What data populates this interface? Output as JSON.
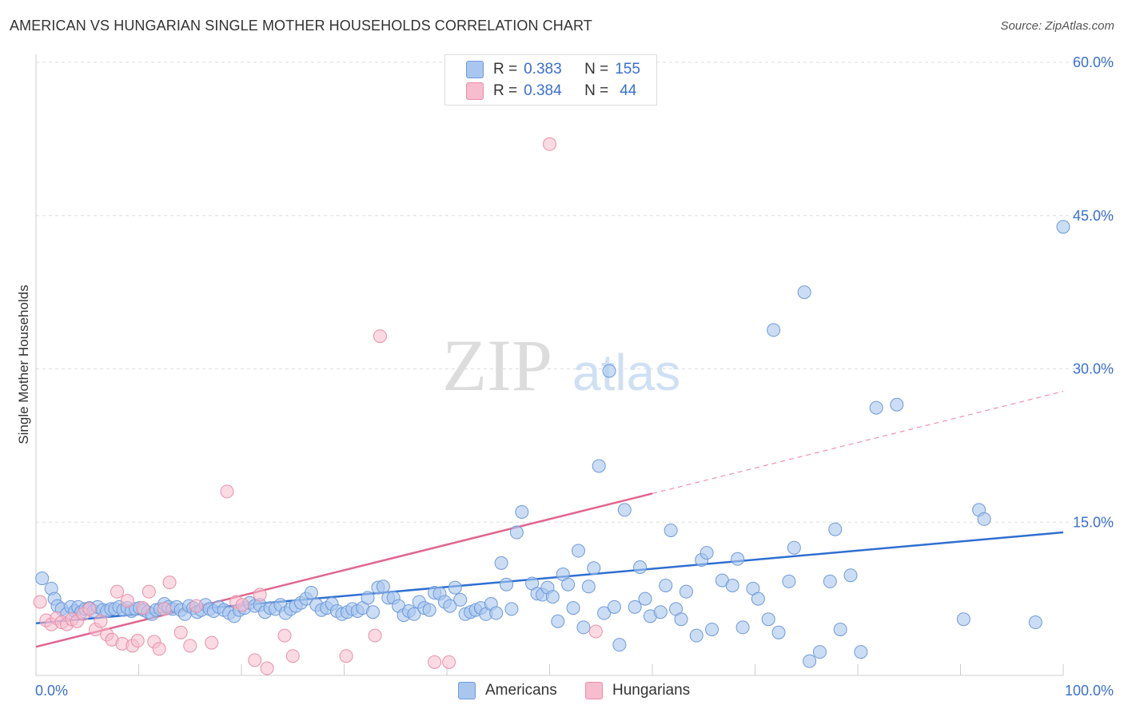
{
  "title": "AMERICAN VS HUNGARIAN SINGLE MOTHER HOUSEHOLDS CORRELATION CHART",
  "source": "Source: ZipAtlas.com",
  "watermark": {
    "zip": "ZIP",
    "atlas": "atlas"
  },
  "colors": {
    "americans_fill": "#a9c6ee",
    "americans_stroke": "#6f9ad8",
    "americans_line": "#2f6fd0",
    "hungarians_fill": "#f7bccd",
    "hungarians_stroke": "#e890aa",
    "hungarians_line": "#e0658d",
    "tick_label": "#3a6fd0",
    "grid": "#dddddd"
  },
  "legend": {
    "rows": [
      {
        "r_label": "R =",
        "r_value": "0.383",
        "n_label": "N =",
        "n_value": "155"
      },
      {
        "r_label": "R =",
        "r_value": "0.384",
        "n_label": "N =",
        "n_value": "44"
      }
    ]
  },
  "bottom_legend": {
    "americans": "Americans",
    "hungarians": "Hungarians"
  },
  "chart_data": {
    "type": "scatter",
    "title": "AMERICAN VS HUNGARIAN SINGLE MOTHER HOUSEHOLDS CORRELATION CHART",
    "xlabel": "",
    "ylabel": "Single Mother Households",
    "xlim": [
      0,
      100
    ],
    "ylim": [
      0,
      60
    ],
    "x_tick_labels": [
      "0.0%",
      "100.0%"
    ],
    "y_ticks": [
      15,
      30,
      45,
      60
    ],
    "y_tick_labels": [
      "15.0%",
      "30.0%",
      "45.0%",
      "60.0%"
    ],
    "grid": true,
    "legend_position": "top-center",
    "series": [
      {
        "name": "Americans",
        "r": 0.383,
        "n": 155,
        "trend": {
          "x0": 0,
          "y0": 5.1,
          "x1": 100,
          "y1": 14.0
        },
        "points": [
          [
            0.6,
            9.5
          ],
          [
            1.5,
            8.5
          ],
          [
            1.8,
            7.5
          ],
          [
            2.1,
            6.8
          ],
          [
            2.5,
            6.5
          ],
          [
            3.0,
            6.0
          ],
          [
            3.4,
            6.7
          ],
          [
            3.8,
            6.3
          ],
          [
            4.1,
            6.7
          ],
          [
            4.4,
            6.2
          ],
          [
            4.8,
            6.5
          ],
          [
            5.2,
            6.6
          ],
          [
            5.6,
            6.3
          ],
          [
            6.0,
            6.7
          ],
          [
            6.5,
            6.4
          ],
          [
            6.9,
            6.3
          ],
          [
            7.3,
            6.5
          ],
          [
            7.7,
            6.5
          ],
          [
            8.1,
            6.7
          ],
          [
            8.5,
            6.4
          ],
          [
            8.9,
            6.6
          ],
          [
            9.3,
            6.3
          ],
          [
            9.7,
            6.5
          ],
          [
            10.1,
            6.6
          ],
          [
            10.5,
            6.4
          ],
          [
            10.9,
            6.2
          ],
          [
            11.3,
            6.0
          ],
          [
            11.7,
            6.4
          ],
          [
            12.1,
            6.5
          ],
          [
            12.5,
            7.0
          ],
          [
            12.9,
            6.7
          ],
          [
            13.3,
            6.5
          ],
          [
            13.7,
            6.7
          ],
          [
            14.1,
            6.4
          ],
          [
            14.5,
            6.0
          ],
          [
            14.9,
            6.8
          ],
          [
            15.3,
            6.6
          ],
          [
            15.7,
            6.2
          ],
          [
            16.1,
            6.4
          ],
          [
            16.5,
            6.9
          ],
          [
            16.9,
            6.5
          ],
          [
            17.3,
            6.3
          ],
          [
            17.8,
            6.7
          ],
          [
            18.3,
            6.4
          ],
          [
            18.8,
            6.1
          ],
          [
            19.3,
            5.8
          ],
          [
            19.8,
            6.4
          ],
          [
            20.3,
            6.6
          ],
          [
            20.8,
            7.1
          ],
          [
            21.3,
            6.8
          ],
          [
            21.8,
            6.9
          ],
          [
            22.3,
            6.2
          ],
          [
            22.8,
            6.6
          ],
          [
            23.3,
            6.5
          ],
          [
            23.8,
            6.9
          ],
          [
            24.3,
            6.1
          ],
          [
            24.8,
            6.5
          ],
          [
            25.3,
            6.8
          ],
          [
            25.8,
            7.1
          ],
          [
            26.3,
            7.5
          ],
          [
            26.8,
            8.1
          ],
          [
            27.3,
            6.9
          ],
          [
            27.8,
            6.4
          ],
          [
            28.3,
            6.6
          ],
          [
            28.8,
            7.0
          ],
          [
            29.3,
            6.3
          ],
          [
            29.8,
            6.0
          ],
          [
            30.3,
            6.2
          ],
          [
            30.8,
            6.5
          ],
          [
            31.3,
            6.3
          ],
          [
            31.8,
            6.6
          ],
          [
            32.3,
            7.6
          ],
          [
            32.8,
            6.2
          ],
          [
            33.3,
            8.6
          ],
          [
            33.8,
            8.7
          ],
          [
            34.3,
            7.6
          ],
          [
            34.8,
            7.6
          ],
          [
            35.3,
            6.8
          ],
          [
            35.8,
            5.9
          ],
          [
            36.3,
            6.3
          ],
          [
            36.8,
            6.0
          ],
          [
            37.3,
            7.2
          ],
          [
            37.8,
            6.6
          ],
          [
            38.3,
            6.4
          ],
          [
            38.8,
            8.1
          ],
          [
            39.3,
            8.0
          ],
          [
            39.8,
            7.2
          ],
          [
            40.3,
            6.8
          ],
          [
            40.8,
            8.6
          ],
          [
            41.3,
            7.4
          ],
          [
            41.8,
            6.0
          ],
          [
            42.3,
            6.2
          ],
          [
            42.8,
            6.4
          ],
          [
            43.3,
            6.6
          ],
          [
            43.8,
            6.0
          ],
          [
            44.3,
            7.0
          ],
          [
            44.8,
            6.1
          ],
          [
            45.3,
            11.0
          ],
          [
            45.8,
            8.9
          ],
          [
            46.3,
            6.5
          ],
          [
            46.8,
            14.0
          ],
          [
            47.3,
            16.0
          ],
          [
            48.3,
            9.0
          ],
          [
            48.8,
            8.0
          ],
          [
            49.3,
            7.9
          ],
          [
            49.8,
            8.6
          ],
          [
            50.3,
            7.7
          ],
          [
            50.8,
            5.3
          ],
          [
            51.3,
            9.9
          ],
          [
            51.8,
            8.9
          ],
          [
            52.3,
            6.6
          ],
          [
            52.8,
            12.2
          ],
          [
            53.3,
            4.7
          ],
          [
            53.8,
            8.7
          ],
          [
            54.3,
            10.5
          ],
          [
            54.8,
            20.5
          ],
          [
            55.3,
            6.1
          ],
          [
            55.8,
            29.8
          ],
          [
            56.3,
            6.7
          ],
          [
            56.8,
            3.0
          ],
          [
            57.3,
            16.2
          ],
          [
            58.3,
            6.7
          ],
          [
            58.8,
            10.6
          ],
          [
            59.3,
            7.5
          ],
          [
            59.8,
            5.8
          ],
          [
            60.8,
            6.2
          ],
          [
            61.3,
            8.8
          ],
          [
            61.8,
            14.2
          ],
          [
            62.3,
            6.5
          ],
          [
            62.8,
            5.5
          ],
          [
            63.3,
            8.2
          ],
          [
            64.3,
            3.9
          ],
          [
            64.8,
            11.3
          ],
          [
            65.3,
            12.0
          ],
          [
            65.8,
            4.5
          ],
          [
            66.8,
            9.3
          ],
          [
            67.8,
            8.8
          ],
          [
            68.3,
            11.4
          ],
          [
            68.8,
            4.7
          ],
          [
            69.8,
            8.5
          ],
          [
            70.3,
            7.5
          ],
          [
            71.8,
            33.8
          ],
          [
            71.3,
            5.5
          ],
          [
            72.3,
            4.2
          ],
          [
            73.3,
            9.2
          ],
          [
            73.8,
            12.5
          ],
          [
            74.8,
            37.5
          ],
          [
            75.3,
            1.4
          ],
          [
            76.3,
            2.3
          ],
          [
            77.3,
            9.2
          ],
          [
            77.8,
            14.3
          ],
          [
            78.3,
            4.5
          ],
          [
            79.3,
            9.8
          ],
          [
            80.3,
            2.3
          ],
          [
            81.8,
            26.2
          ],
          [
            83.8,
            26.5
          ],
          [
            90.3,
            5.5
          ],
          [
            91.8,
            16.2
          ],
          [
            92.3,
            15.3
          ],
          [
            97.3,
            5.2
          ],
          [
            100.0,
            43.9
          ]
        ]
      },
      {
        "name": "Hungarians",
        "r": 0.384,
        "n": 44,
        "trend": {
          "x0": 0,
          "y0": 2.8,
          "x1": 60,
          "y1": 17.8
        },
        "trend_dashed": {
          "x0": 60,
          "y0": 17.8,
          "x1": 100,
          "y1": 27.8
        },
        "points": [
          [
            0.4,
            7.2
          ],
          [
            1.0,
            5.4
          ],
          [
            1.5,
            5.0
          ],
          [
            2.0,
            5.6
          ],
          [
            2.5,
            5.2
          ],
          [
            3.0,
            5.0
          ],
          [
            3.5,
            5.5
          ],
          [
            4.0,
            5.3
          ],
          [
            4.6,
            6.0
          ],
          [
            5.2,
            6.5
          ],
          [
            5.8,
            4.5
          ],
          [
            6.3,
            5.3
          ],
          [
            6.9,
            4.0
          ],
          [
            7.4,
            3.5
          ],
          [
            7.9,
            8.2
          ],
          [
            8.4,
            3.1
          ],
          [
            8.9,
            7.3
          ],
          [
            9.4,
            2.9
          ],
          [
            9.9,
            3.4
          ],
          [
            10.4,
            6.6
          ],
          [
            11.0,
            8.2
          ],
          [
            11.5,
            3.3
          ],
          [
            12.0,
            2.6
          ],
          [
            12.5,
            6.5
          ],
          [
            13.0,
            9.1
          ],
          [
            14.1,
            4.2
          ],
          [
            15.0,
            2.9
          ],
          [
            15.6,
            6.8
          ],
          [
            17.1,
            3.2
          ],
          [
            18.6,
            18.0
          ],
          [
            19.5,
            7.2
          ],
          [
            20.1,
            6.9
          ],
          [
            21.3,
            1.5
          ],
          [
            21.8,
            7.9
          ],
          [
            22.5,
            0.7
          ],
          [
            24.2,
            3.9
          ],
          [
            25.0,
            1.9
          ],
          [
            30.2,
            1.9
          ],
          [
            33.5,
            33.2
          ],
          [
            33.0,
            3.9
          ],
          [
            38.8,
            1.3
          ],
          [
            40.2,
            1.3
          ],
          [
            50.0,
            52.0
          ],
          [
            54.5,
            4.3
          ]
        ]
      }
    ]
  }
}
